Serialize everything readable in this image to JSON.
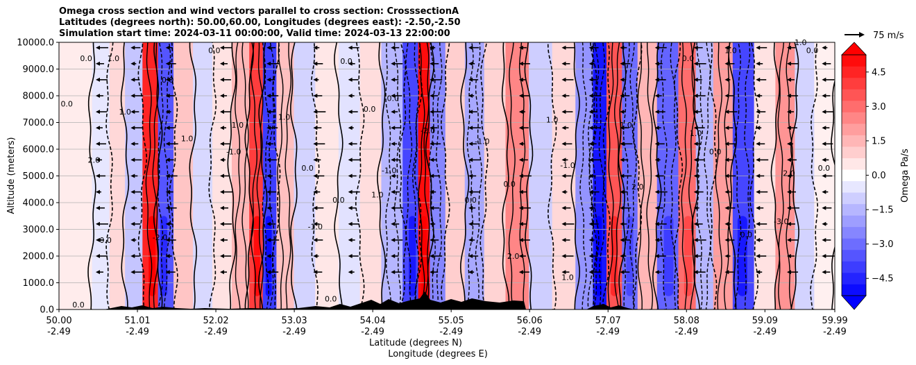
{
  "chart_data": {
    "type": "heatmap",
    "title_lines": [
      "Omega cross section and wind vectors parallel to cross section: CrosssectionA",
      "Latitudes (degrees north): 50.00,60.00, Longitudes (degrees east): -2.50,-2.50",
      "Simulation start time: 2024-03-11 00:00:00, Valid time: 2024-03-13 22:00:00"
    ],
    "ylabel": "Altitude (meters)",
    "xlabel_lat": "Latitude (degrees N)",
    "xlabel_lon": "Longitude (degrees E)",
    "ylim": [
      0,
      10000
    ],
    "y_ticks": [
      "0.0",
      "1000.0",
      "2000.0",
      "3000.0",
      "4000.0",
      "5000.0",
      "6000.0",
      "7000.0",
      "8000.0",
      "9000.0",
      "10000.0"
    ],
    "x_ticks_lat": [
      "50.00",
      "51.01",
      "52.02",
      "53.03",
      "54.04",
      "55.05",
      "56.06",
      "57.07",
      "58.08",
      "59.09",
      "59.99"
    ],
    "x_ticks_lon": [
      "-2.49",
      "-2.49",
      "-2.49",
      "-2.49",
      "-2.49",
      "-2.49",
      "-2.49",
      "-2.49",
      "-2.49",
      "-2.49",
      "-2.49"
    ],
    "colorbar": {
      "label": "Omega Pa/s",
      "range": [
        -5.25,
        5.25
      ],
      "ticks": [
        "4.5",
        "3.0",
        "1.5",
        "0.0",
        "−1.5",
        "−3.0",
        "−4.5"
      ],
      "tick_values": [
        4.5,
        3.0,
        1.5,
        0.0,
        -1.5,
        -3.0,
        -4.5
      ],
      "extend": "both"
    },
    "quiver_key": {
      "label": "75 m/s",
      "value": 75
    },
    "omega_columns": [
      {
        "lat": 50.3,
        "omega": 0.4
      },
      {
        "lat": 50.55,
        "omega": -0.5
      },
      {
        "lat": 50.75,
        "omega": 0.8
      },
      {
        "lat": 50.95,
        "omega": -1.2
      },
      {
        "lat": 51.2,
        "omega": 4.5
      },
      {
        "lat": 51.35,
        "omega": -3.5
      },
      {
        "lat": 51.6,
        "omega": 1.2
      },
      {
        "lat": 51.85,
        "omega": -0.8
      },
      {
        "lat": 52.1,
        "omega": 0.6
      },
      {
        "lat": 52.35,
        "omega": 1.5
      },
      {
        "lat": 52.55,
        "omega": 4.0
      },
      {
        "lat": 52.7,
        "omega": -4.0
      },
      {
        "lat": 52.9,
        "omega": 1.3
      },
      {
        "lat": 53.15,
        "omega": -0.9
      },
      {
        "lat": 53.45,
        "omega": 0.5
      },
      {
        "lat": 53.75,
        "omega": -0.6
      },
      {
        "lat": 54.0,
        "omega": 0.7
      },
      {
        "lat": 54.3,
        "omega": -1.5
      },
      {
        "lat": 54.55,
        "omega": -3.8
      },
      {
        "lat": 54.7,
        "omega": 5.0
      },
      {
        "lat": 54.85,
        "omega": -2.5
      },
      {
        "lat": 55.1,
        "omega": 1.0
      },
      {
        "lat": 55.35,
        "omega": -1.8
      },
      {
        "lat": 55.6,
        "omega": 0.9
      },
      {
        "lat": 55.9,
        "omega": 2.5
      },
      {
        "lat": 56.2,
        "omega": -1.0
      },
      {
        "lat": 56.5,
        "omega": 0.8
      },
      {
        "lat": 56.8,
        "omega": -2.2
      },
      {
        "lat": 56.95,
        "omega": -4.8
      },
      {
        "lat": 57.15,
        "omega": 3.5
      },
      {
        "lat": 57.35,
        "omega": -3.0
      },
      {
        "lat": 57.55,
        "omega": 1.5
      },
      {
        "lat": 57.85,
        "omega": -3.2
      },
      {
        "lat": 58.1,
        "omega": 3.0
      },
      {
        "lat": 58.3,
        "omega": -1.5
      },
      {
        "lat": 58.55,
        "omega": 2.0
      },
      {
        "lat": 58.8,
        "omega": -3.8
      },
      {
        "lat": 59.1,
        "omega": 0.6
      },
      {
        "lat": 59.35,
        "omega": 2.2
      },
      {
        "lat": 59.6,
        "omega": -0.9
      },
      {
        "lat": 59.85,
        "omega": 0.3
      }
    ],
    "contour_labels": [
      {
        "text": "0.0",
        "lat": 50.1,
        "alt": 7600
      },
      {
        "text": "0.0",
        "lat": 50.35,
        "alt": 9300
      },
      {
        "text": "2.0",
        "lat": 50.45,
        "alt": 5500
      },
      {
        "text": "0.0",
        "lat": 50.6,
        "alt": 2500
      },
      {
        "text": "1.0",
        "lat": 50.85,
        "alt": 7300
      },
      {
        "text": "1.0",
        "lat": 50.7,
        "alt": 9300
      },
      {
        "text": "0.0",
        "lat": 51.4,
        "alt": 8500
      },
      {
        "text": "-2.0",
        "lat": 51.3,
        "alt": 2600
      },
      {
        "text": "1.0",
        "lat": 51.65,
        "alt": 6300
      },
      {
        "text": "0.0",
        "lat": 52.0,
        "alt": 9600
      },
      {
        "text": "1.0",
        "lat": 52.3,
        "alt": 6800
      },
      {
        "text": "-1.0",
        "lat": 52.25,
        "alt": 5800
      },
      {
        "text": "1.0",
        "lat": 52.9,
        "alt": 7100
      },
      {
        "text": "0.0",
        "lat": 53.2,
        "alt": 5200
      },
      {
        "text": "-1.0",
        "lat": 53.3,
        "alt": 3000
      },
      {
        "text": "0.0",
        "lat": 53.7,
        "alt": 9200
      },
      {
        "text": "0.0",
        "lat": 53.6,
        "alt": 4000
      },
      {
        "text": "0.0",
        "lat": 54.0,
        "alt": 7400
      },
      {
        "text": "0.0",
        "lat": 54.3,
        "alt": 7800
      },
      {
        "text": "-1.0",
        "lat": 54.25,
        "alt": 5100
      },
      {
        "text": "1.0",
        "lat": 54.1,
        "alt": 4200
      },
      {
        "text": "-2.0",
        "lat": 54.75,
        "alt": 6600
      },
      {
        "text": "0.0",
        "lat": 55.3,
        "alt": 4000
      },
      {
        "text": "-1.0",
        "lat": 55.45,
        "alt": 6200
      },
      {
        "text": "0.0",
        "lat": 55.8,
        "alt": 4600
      },
      {
        "text": "2.0",
        "lat": 55.85,
        "alt": 1900
      },
      {
        "text": "1.0",
        "lat": 56.35,
        "alt": 7000
      },
      {
        "text": "-1.0",
        "lat": 56.55,
        "alt": 5300
      },
      {
        "text": "1.0",
        "lat": 57.3,
        "alt": 6800
      },
      {
        "text": "2.0",
        "lat": 57.45,
        "alt": 4500
      },
      {
        "text": "1.0",
        "lat": 58.2,
        "alt": 6500
      },
      {
        "text": "0.0",
        "lat": 58.45,
        "alt": 5800
      },
      {
        "text": "1.0",
        "lat": 58.65,
        "alt": 9600
      },
      {
        "text": "0.0",
        "lat": 58.1,
        "alt": 9300
      },
      {
        "text": "2.0",
        "lat": 59.4,
        "alt": 5000
      },
      {
        "text": "-3.0",
        "lat": 59.3,
        "alt": 3200
      },
      {
        "text": "1.0",
        "lat": 59.55,
        "alt": 9900
      },
      {
        "text": "0.0",
        "lat": 59.85,
        "alt": 5200
      },
      {
        "text": "0.0",
        "lat": 59.7,
        "alt": 9600
      },
      {
        "text": "0.0",
        "lat": 58.85,
        "alt": 2700
      },
      {
        "text": "1.0",
        "lat": 56.55,
        "alt": 1100
      },
      {
        "text": "0.0",
        "lat": 53.5,
        "alt": 300
      },
      {
        "text": "0.0",
        "lat": 50.25,
        "alt": 80
      }
    ]
  }
}
